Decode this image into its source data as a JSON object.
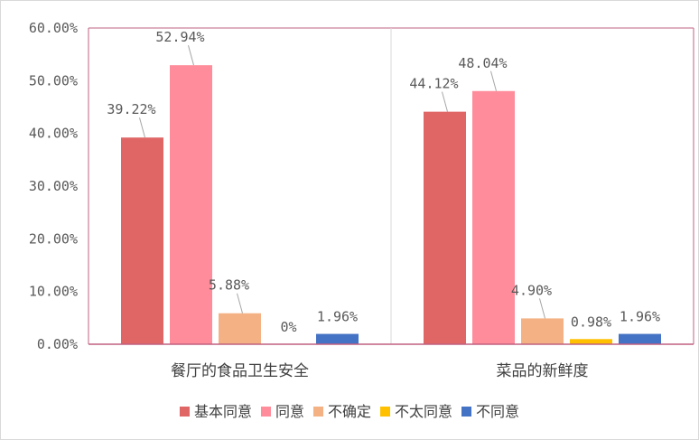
{
  "chart_data": {
    "type": "bar",
    "categories": [
      "餐厅的食品卫生安全",
      "菜品的新鲜度"
    ],
    "series": [
      {
        "name": "基本同意",
        "color": "#E06666",
        "values": [
          39.22,
          44.12
        ],
        "labels": [
          "39.22%",
          "44.12%"
        ]
      },
      {
        "name": "同意",
        "color": "#FF8C9A",
        "values": [
          52.94,
          48.04
        ],
        "labels": [
          "52.94%",
          "48.04%"
        ]
      },
      {
        "name": "不确定",
        "color": "#F4B183",
        "values": [
          5.88,
          4.9
        ],
        "labels": [
          "5.88%",
          "4.90%"
        ]
      },
      {
        "name": "不太同意",
        "color": "#FFC000",
        "values": [
          0,
          0.98
        ],
        "labels": [
          "0%",
          "0.98%"
        ]
      },
      {
        "name": "不同意",
        "color": "#4472C4",
        "values": [
          1.96,
          1.96
        ],
        "labels": [
          "1.96%",
          "1.96%"
        ]
      }
    ],
    "ylim": [
      0,
      60
    ],
    "yticks": [
      "0.00%",
      "10.00%",
      "20.00%",
      "30.00%",
      "40.00%",
      "50.00%",
      "60.00%"
    ],
    "ytick_values": [
      0,
      10,
      20,
      30,
      40,
      50,
      60
    ],
    "legend_position": "bottom",
    "xlabel": "",
    "ylabel": ""
  }
}
